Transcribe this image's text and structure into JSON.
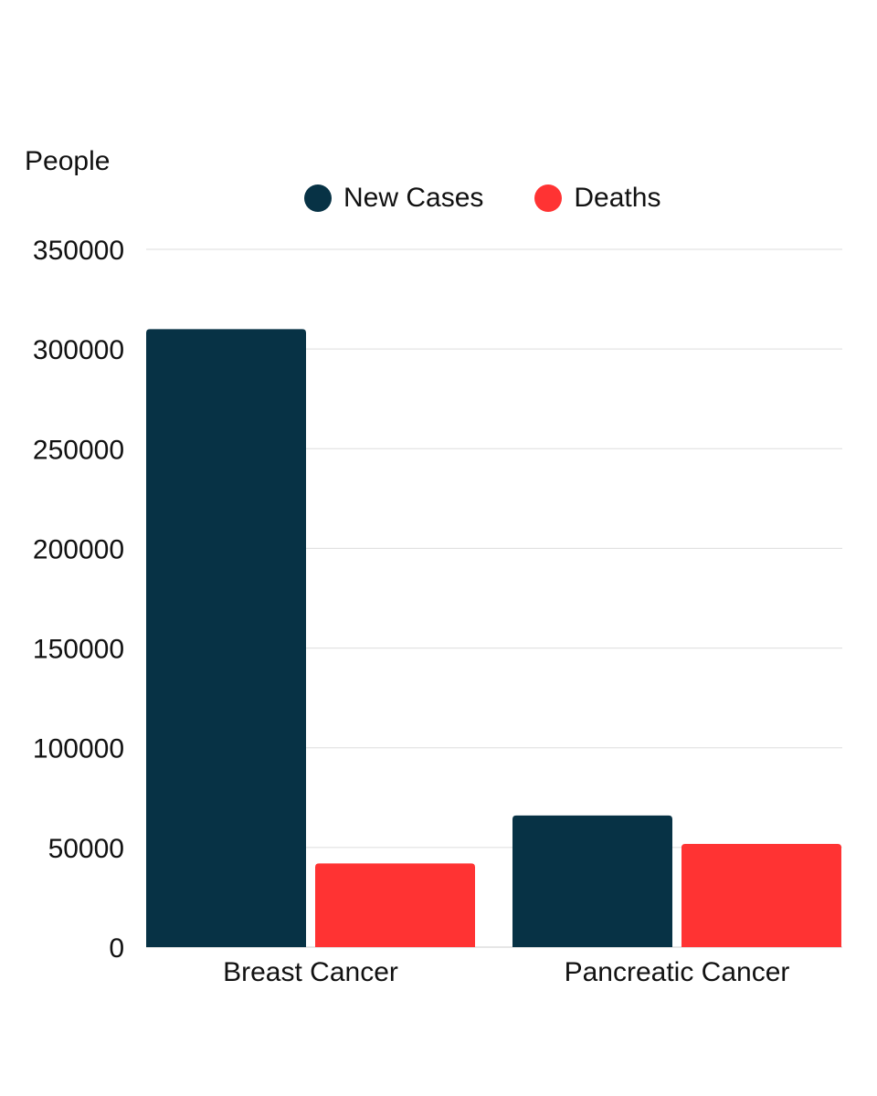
{
  "chart_data": {
    "type": "bar",
    "ylabel": "People",
    "categories": [
      "Breast Cancer",
      "Pancreatic Cancer"
    ],
    "series": [
      {
        "name": "New Cases",
        "color": "#073245",
        "values": [
          310000,
          66000
        ]
      },
      {
        "name": "Deaths",
        "color": "#ff3333",
        "values": [
          42000,
          51750
        ]
      }
    ],
    "ylim": [
      0,
      350000
    ],
    "yticks": [
      0,
      50000,
      100000,
      150000,
      200000,
      250000,
      300000,
      350000
    ],
    "grid": true,
    "legend": "top-center"
  }
}
